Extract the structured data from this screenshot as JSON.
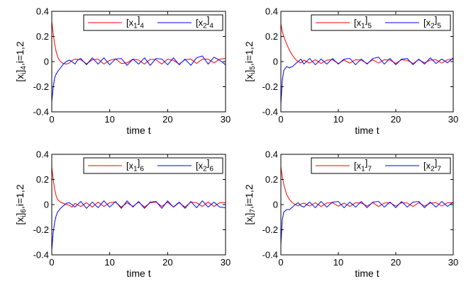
{
  "figure": {
    "description_free": true
  },
  "colors": {
    "series1": "#ff0000",
    "series2": "#0000ff",
    "axis": "#000000",
    "background": "#ffffff"
  },
  "chart_data": [
    {
      "type": "line",
      "panel": "top-left",
      "xlabel": "time t",
      "ylabel_main": "[x",
      "ylabel_sub1": "i",
      "ylabel_mid": "]",
      "ylabel_sub2": "4",
      "ylabel_tail": ",i=1,2",
      "xlim": [
        0,
        30
      ],
      "ylim": [
        -0.4,
        0.4
      ],
      "xticks": [
        0,
        10,
        20,
        30
      ],
      "xtick_labels": [
        "0",
        "10",
        "20",
        "30"
      ],
      "yticks": [
        -0.4,
        -0.2,
        0,
        0.2,
        0.4
      ],
      "ytick_labels": [
        "-0.4",
        "-0.2",
        "0",
        "0.2",
        "0.4"
      ],
      "legend_position": "top-right",
      "series": [
        {
          "name": "[x1]4",
          "label_main": "[x",
          "label_sub1": "1",
          "label_mid": "]",
          "label_sub2": "4",
          "color": "#ff0000",
          "x": [
            0,
            0.25,
            0.5,
            0.75,
            1,
            1.25,
            1.5,
            2,
            2.5,
            3,
            3.5,
            4,
            5,
            6,
            7,
            8,
            9,
            10,
            11,
            12,
            13,
            14,
            15,
            16,
            17,
            18,
            19,
            20,
            21,
            22,
            23,
            24,
            25,
            26,
            27,
            28,
            29,
            30
          ],
          "y": [
            0.32,
            0.22,
            0.14,
            0.08,
            0.04,
            0.015,
            0.0,
            -0.015,
            -0.02,
            -0.012,
            0.008,
            0.02,
            0.015,
            -0.018,
            0.015,
            0.02,
            -0.02,
            0.01,
            0.022,
            -0.015,
            -0.01,
            0.02,
            0.012,
            -0.02,
            0.018,
            0.015,
            -0.02,
            0.02,
            0.01,
            -0.02,
            0.015,
            0.02,
            -0.015,
            0.02,
            0.02,
            -0.01,
            0.02,
            0.025
          ]
        },
        {
          "name": "[x2]4",
          "label_main": "[x",
          "label_sub1": "2",
          "label_mid": "]",
          "label_sub2": "4",
          "color": "#0000ff",
          "x": [
            0,
            0.25,
            0.5,
            0.75,
            1,
            1.5,
            2,
            2.5,
            3,
            3.5,
            4,
            4.5,
            5,
            6,
            7,
            8,
            9,
            10,
            11,
            12,
            13,
            14,
            15,
            16,
            17,
            18,
            19,
            20,
            21,
            22,
            23,
            24,
            25,
            26,
            27,
            28,
            29,
            30
          ],
          "y": [
            -0.32,
            -0.2,
            -0.13,
            -0.1,
            -0.08,
            -0.05,
            -0.02,
            0.0,
            0.012,
            0.0,
            -0.02,
            0.015,
            0.025,
            -0.025,
            0.03,
            -0.02,
            0.03,
            -0.025,
            0.02,
            0.025,
            -0.03,
            0.02,
            -0.02,
            0.03,
            -0.03,
            0.025,
            0.02,
            -0.025,
            0.03,
            -0.025,
            0.02,
            -0.03,
            0.03,
            0.045,
            -0.02,
            0.035,
            0.01,
            -0.025
          ]
        }
      ]
    },
    {
      "type": "line",
      "panel": "top-right",
      "xlabel": "time t",
      "ylabel_main": "[x",
      "ylabel_sub1": "i",
      "ylabel_mid": "]",
      "ylabel_sub2": "5",
      "ylabel_tail": ",i=1,2",
      "xlim": [
        0,
        30
      ],
      "ylim": [
        -0.4,
        0.4
      ],
      "xticks": [
        0,
        10,
        20,
        30
      ],
      "xtick_labels": [
        "0",
        "10",
        "20",
        "30"
      ],
      "yticks": [
        -0.4,
        -0.2,
        0,
        0.2,
        0.4
      ],
      "ytick_labels": [
        "-0.4",
        "-0.2",
        "0",
        "0.2",
        "0.4"
      ],
      "legend_position": "top-right",
      "series": [
        {
          "name": "[x1]5",
          "label_main": "[x",
          "label_sub1": "1",
          "label_mid": "]",
          "label_sub2": "5",
          "color": "#ff0000",
          "x": [
            0,
            0.25,
            0.5,
            1,
            1.5,
            2,
            2.5,
            3,
            3.5,
            4,
            5,
            6,
            7,
            8,
            9,
            10,
            11,
            12,
            13,
            14,
            15,
            16,
            17,
            18,
            19,
            20,
            21,
            22,
            23,
            24,
            25,
            26,
            27,
            28,
            29,
            30
          ],
          "y": [
            0.3,
            0.24,
            0.2,
            0.14,
            0.09,
            0.05,
            0.02,
            0.0,
            -0.01,
            0.012,
            -0.012,
            0.015,
            -0.015,
            0.012,
            0.015,
            -0.015,
            0.012,
            -0.012,
            0.015,
            0.012,
            -0.015,
            0.015,
            -0.012,
            0.015,
            0.012,
            -0.015,
            0.015,
            0.01,
            -0.015,
            0.015,
            -0.01,
            0.012,
            0.015,
            -0.012,
            0.015,
            0.02
          ]
        },
        {
          "name": "[x2]5",
          "label_main": "[x",
          "label_sub1": "2",
          "label_mid": "]",
          "label_sub2": "5",
          "color": "#0000ff",
          "x": [
            0,
            0.25,
            0.5,
            1,
            1.5,
            2,
            2.5,
            3,
            3.5,
            4,
            5,
            6,
            7,
            8,
            9,
            10,
            11,
            12,
            13,
            14,
            15,
            16,
            17,
            18,
            19,
            20,
            21,
            22,
            23,
            24,
            25,
            26,
            27,
            28,
            29,
            30
          ],
          "y": [
            -0.34,
            -0.15,
            -0.07,
            -0.04,
            -0.05,
            -0.04,
            -0.02,
            0.0,
            0.02,
            -0.02,
            0.025,
            -0.025,
            0.02,
            -0.02,
            0.025,
            -0.02,
            0.02,
            0.025,
            -0.025,
            0.02,
            -0.02,
            0.025,
            0.035,
            -0.02,
            0.025,
            -0.025,
            0.02,
            0.025,
            -0.025,
            0.02,
            -0.02,
            0.03,
            -0.015,
            0.02,
            -0.01,
            0.03
          ]
        }
      ]
    },
    {
      "type": "line",
      "panel": "bottom-left",
      "xlabel": "time t",
      "ylabel_main": "[x",
      "ylabel_sub1": "i",
      "ylabel_mid": "]",
      "ylabel_sub2": "6",
      "ylabel_tail": ",i=1,2",
      "xlim": [
        0,
        30
      ],
      "ylim": [
        -0.4,
        0.4
      ],
      "xticks": [
        0,
        10,
        20,
        30
      ],
      "xtick_labels": [
        "0",
        "10",
        "20",
        "30"
      ],
      "yticks": [
        -0.4,
        -0.2,
        0,
        0.2,
        0.4
      ],
      "ytick_labels": [
        "-0.4",
        "-0.2",
        "0",
        "0.2",
        "0.4"
      ],
      "legend_position": "top-right",
      "series": [
        {
          "name": "[x1]6",
          "label_main": "[x",
          "label_sub1": "1",
          "label_mid": "]",
          "label_sub2": "6",
          "color": "#ff0000",
          "x": [
            0,
            0.25,
            0.5,
            0.75,
            1,
            1.5,
            2,
            2.5,
            3,
            3.5,
            4,
            5,
            6,
            7,
            8,
            9,
            10,
            11,
            12,
            13,
            14,
            15,
            16,
            17,
            18,
            19,
            20,
            21,
            22,
            23,
            24,
            25,
            26,
            27,
            28,
            29,
            30
          ],
          "y": [
            0.3,
            0.2,
            0.12,
            0.07,
            0.04,
            0.02,
            0.01,
            0.0,
            -0.005,
            -0.02,
            0.01,
            -0.015,
            0.015,
            -0.02,
            0.02,
            -0.015,
            0.015,
            0.02,
            -0.02,
            0.015,
            -0.015,
            0.02,
            -0.02,
            0.015,
            0.02,
            -0.015,
            0.02,
            -0.02,
            0.015,
            -0.02,
            0.02,
            0.015,
            -0.015,
            0.02,
            -0.015,
            0.015,
            0.015
          ]
        },
        {
          "name": "[x2]6",
          "label_main": "[x",
          "label_sub1": "2",
          "label_mid": "]",
          "label_sub2": "6",
          "color": "#0000ff",
          "x": [
            0,
            0.25,
            0.5,
            0.75,
            1,
            1.5,
            2,
            2.5,
            3,
            3.5,
            4,
            5,
            6,
            7,
            8,
            9,
            10,
            11,
            12,
            13,
            14,
            15,
            16,
            17,
            18,
            19,
            20,
            21,
            22,
            23,
            24,
            25,
            26,
            27,
            28,
            29,
            30
          ],
          "y": [
            -0.36,
            -0.22,
            -0.14,
            -0.09,
            -0.06,
            -0.03,
            -0.01,
            0.01,
            0.015,
            0.0,
            -0.02,
            0.025,
            -0.03,
            0.02,
            -0.025,
            0.03,
            -0.02,
            0.025,
            -0.03,
            0.03,
            -0.02,
            0.025,
            -0.03,
            0.02,
            0.025,
            -0.03,
            0.03,
            -0.02,
            0.02,
            -0.03,
            0.025,
            -0.025,
            0.03,
            -0.02,
            0.02,
            -0.02,
            -0.025
          ]
        }
      ]
    },
    {
      "type": "line",
      "panel": "bottom-right",
      "xlabel": "time t",
      "ylabel_main": "[x",
      "ylabel_sub1": "i",
      "ylabel_mid": "]",
      "ylabel_sub2": "7",
      "ylabel_tail": ",i=1,2",
      "xlim": [
        0,
        30
      ],
      "ylim": [
        -0.4,
        0.4
      ],
      "xticks": [
        0,
        10,
        20,
        30
      ],
      "xtick_labels": [
        "0",
        "10",
        "20",
        "30"
      ],
      "yticks": [
        -0.4,
        -0.2,
        0,
        0.2,
        0.4
      ],
      "ytick_labels": [
        "-0.4",
        "-0.2",
        "0",
        "0.2",
        "0.4"
      ],
      "legend_position": "top-right",
      "series": [
        {
          "name": "[x1]7",
          "label_main": "[x",
          "label_sub1": "1",
          "label_mid": "]",
          "label_sub2": "7",
          "color": "#ff0000",
          "x": [
            0,
            0.25,
            0.5,
            1,
            1.5,
            2,
            2.5,
            3,
            3.5,
            4,
            5,
            6,
            7,
            8,
            9,
            10,
            11,
            12,
            13,
            14,
            15,
            16,
            17,
            18,
            19,
            20,
            21,
            22,
            23,
            24,
            25,
            26,
            27,
            28,
            29,
            30
          ],
          "y": [
            0.3,
            0.22,
            0.16,
            0.08,
            0.04,
            0.015,
            0.0,
            -0.01,
            0.005,
            0.012,
            -0.012,
            0.015,
            -0.015,
            0.012,
            0.015,
            -0.012,
            0.012,
            -0.015,
            0.015,
            0.012,
            -0.012,
            0.015,
            -0.015,
            0.012,
            0.015,
            -0.012,
            0.015,
            0.012,
            -0.015,
            0.015,
            -0.012,
            0.012,
            0.015,
            -0.012,
            0.015,
            0.015
          ]
        },
        {
          "name": "[x2]7",
          "label_main": "[x",
          "label_sub1": "2",
          "label_mid": "]",
          "label_sub2": "7",
          "color": "#0000ff",
          "x": [
            0,
            0.25,
            0.5,
            1,
            1.5,
            2,
            2.5,
            3,
            3.5,
            4,
            5,
            6,
            7,
            8,
            9,
            10,
            11,
            12,
            13,
            14,
            15,
            16,
            17,
            18,
            19,
            20,
            21,
            22,
            23,
            24,
            25,
            26,
            27,
            28,
            29,
            30
          ],
          "y": [
            -0.32,
            -0.12,
            -0.06,
            -0.04,
            -0.04,
            -0.02,
            0.0,
            0.015,
            -0.01,
            -0.02,
            0.02,
            -0.025,
            0.025,
            -0.02,
            0.02,
            0.025,
            -0.025,
            0.02,
            -0.02,
            0.025,
            -0.025,
            0.02,
            0.025,
            -0.02,
            0.02,
            -0.025,
            0.025,
            -0.02,
            0.02,
            0.025,
            -0.025,
            0.02,
            -0.02,
            0.025,
            -0.015,
            0.02
          ]
        }
      ]
    }
  ]
}
